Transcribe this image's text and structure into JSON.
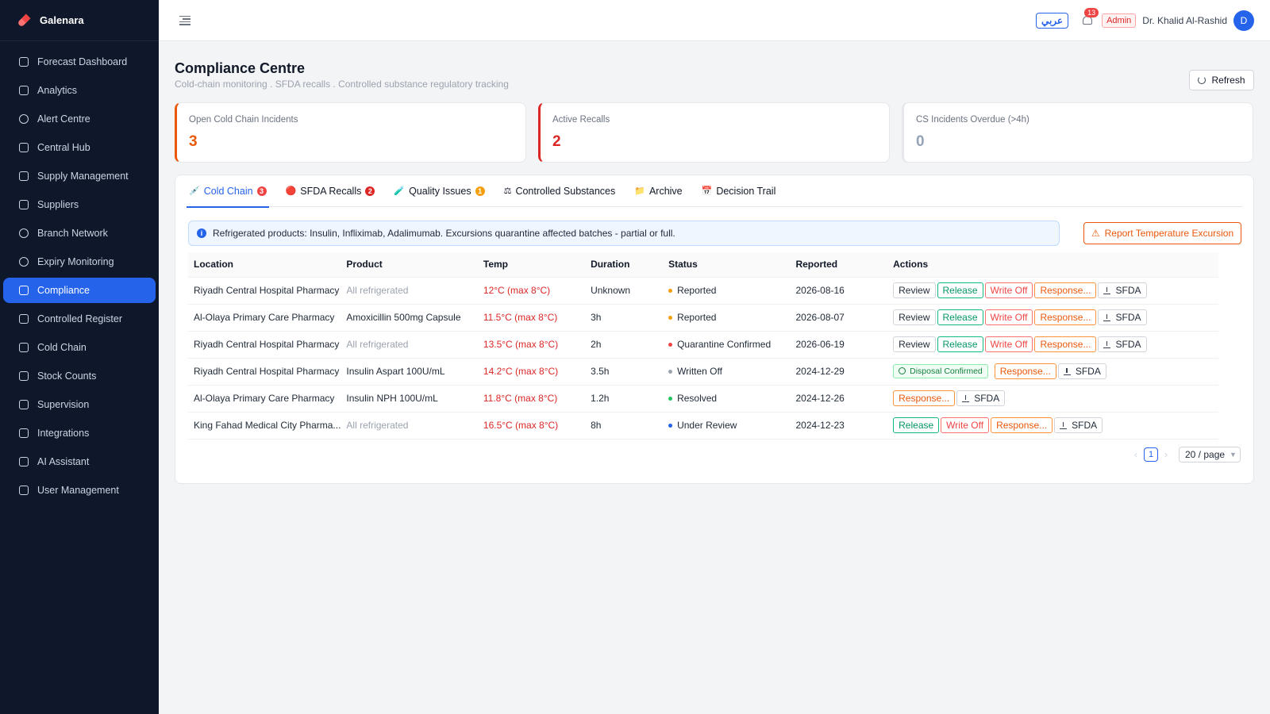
{
  "brand": {
    "name": "Galenara"
  },
  "sidebar": {
    "items": [
      {
        "label": "Forecast Dashboard",
        "icon": "dashboard-icon"
      },
      {
        "label": "Analytics",
        "icon": "chart-icon"
      },
      {
        "label": "Alert Centre",
        "icon": "bell-icon"
      },
      {
        "label": "Central Hub",
        "icon": "hub-icon"
      },
      {
        "label": "Supply Management",
        "icon": "cart-icon"
      },
      {
        "label": "Suppliers",
        "icon": "supplier-icon"
      },
      {
        "label": "Branch Network",
        "icon": "globe-icon"
      },
      {
        "label": "Expiry Monitoring",
        "icon": "clock-icon"
      },
      {
        "label": "Compliance",
        "icon": "compliance-icon",
        "active": true
      },
      {
        "label": "Controlled Register",
        "icon": "shield-icon"
      },
      {
        "label": "Cold Chain",
        "icon": "flask-icon"
      },
      {
        "label": "Stock Counts",
        "icon": "clipboard-icon"
      },
      {
        "label": "Supervision",
        "icon": "monitor-icon"
      },
      {
        "label": "Integrations",
        "icon": "link-icon"
      },
      {
        "label": "AI Assistant",
        "icon": "ai-icon"
      },
      {
        "label": "User Management",
        "icon": "users-icon"
      }
    ]
  },
  "header": {
    "lang_label": "عربي",
    "notification_count": "13",
    "role": "Admin",
    "user_name": "Dr. Khalid Al-Rashid",
    "avatar_initial": "D"
  },
  "page": {
    "title": "Compliance Centre",
    "subtitle": "Cold-chain monitoring . SFDA recalls . Controlled substance regulatory tracking",
    "refresh_label": "Refresh"
  },
  "stats": [
    {
      "label": "Open Cold Chain Incidents",
      "value": "3",
      "color": "#ea580c"
    },
    {
      "label": "Active Recalls",
      "value": "2",
      "color": "#dc2626"
    },
    {
      "label": "CS Incidents Overdue (>4h)",
      "value": "0",
      "color": "#94a3b8"
    }
  ],
  "tabs": [
    {
      "label": "Cold Chain",
      "icon": "syringe-icon",
      "badge": "3",
      "badge_color": "#ef4444"
    },
    {
      "label": "SFDA Recalls",
      "icon": "red-circle-icon",
      "badge": "2",
      "badge_color": "#dc2626"
    },
    {
      "label": "Quality Issues",
      "icon": "test-tube-icon",
      "badge": "1",
      "badge_color": "#f59e0b"
    },
    {
      "label": "Controlled Substances",
      "icon": "scale-icon"
    },
    {
      "label": "Archive",
      "icon": "folder-icon"
    },
    {
      "label": "Decision Trail",
      "icon": "calendar-icon"
    }
  ],
  "banner": {
    "text": "Refrigerated products: Insulin, Infliximab, Adalimumab. Excursions quarantine affected batches - partial or full.",
    "button_label": "Report Temperature Excursion"
  },
  "table": {
    "headers": [
      "Location",
      "Product",
      "Temp",
      "Duration",
      "Status",
      "Reported",
      "Actions"
    ],
    "rows": [
      {
        "location": "Riyadh Central Hospital Pharmacy",
        "product": "All refrigerated",
        "product_muted": true,
        "temp": "12°C (max 8°C)",
        "duration": "Unknown",
        "status": "Reported",
        "status_color": "#f59e0b",
        "reported": "2026-08-16",
        "actions": [
          "Review",
          "Release",
          "Write Off",
          "Response...",
          "SFDA"
        ]
      },
      {
        "location": "Al-Olaya Primary Care Pharmacy",
        "product": "Amoxicillin 500mg Capsule",
        "product_muted": false,
        "temp": "11.5°C (max 8°C)",
        "duration": "3h",
        "status": "Reported",
        "status_color": "#f59e0b",
        "reported": "2026-08-07",
        "actions": [
          "Review",
          "Release",
          "Write Off",
          "Response...",
          "SFDA"
        ]
      },
      {
        "location": "Riyadh Central Hospital Pharmacy",
        "product": "All refrigerated",
        "product_muted": true,
        "temp": "13.5°C (max 8°C)",
        "duration": "2h",
        "status": "Quarantine Confirmed",
        "status_color": "#ef4444",
        "reported": "2026-06-19",
        "actions": [
          "Review",
          "Release",
          "Write Off",
          "Response...",
          "SFDA"
        ]
      },
      {
        "location": "Riyadh Central Hospital Pharmacy",
        "product": "Insulin Aspart 100U/mL",
        "product_muted": false,
        "temp": "14.2°C (max 8°C)",
        "duration": "3.5h",
        "status": "Written Off",
        "status_color": "#9ca3af",
        "reported": "2024-12-29",
        "actions": [
          "Disposal Confirmed",
          "Response...",
          "SFDA"
        ]
      },
      {
        "location": "Al-Olaya Primary Care Pharmacy",
        "product": "Insulin NPH 100U/mL",
        "product_muted": false,
        "temp": "11.8°C (max 8°C)",
        "duration": "1.2h",
        "status": "Resolved",
        "status_color": "#22c55e",
        "reported": "2024-12-26",
        "actions": [
          "Response...",
          "SFDA"
        ]
      },
      {
        "location": "King Fahad Medical City Pharma...",
        "product": "All refrigerated",
        "product_muted": true,
        "temp": "16.5°C (max 8°C)",
        "duration": "8h",
        "status": "Under Review",
        "status_color": "#2563eb",
        "reported": "2024-12-23",
        "actions": [
          "Release",
          "Write Off",
          "Response...",
          "SFDA"
        ]
      }
    ]
  },
  "pagination": {
    "current": "1",
    "page_size": "20 / page"
  }
}
